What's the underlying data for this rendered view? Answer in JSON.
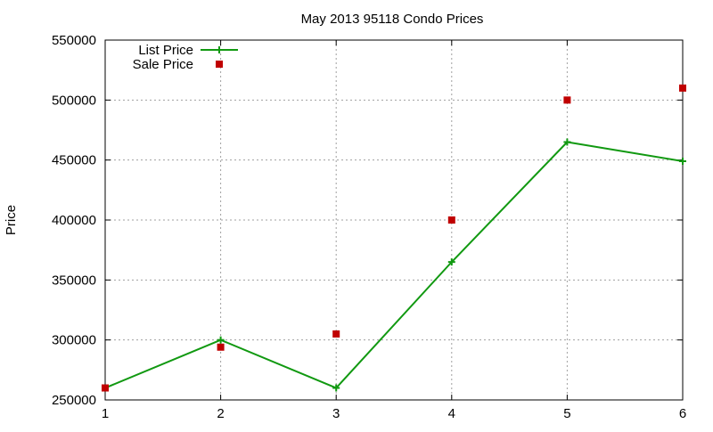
{
  "chart_data": {
    "type": "line",
    "title": "May 2013 95118 Condo Prices",
    "xlabel": "",
    "ylabel": "Price",
    "x": [
      1,
      2,
      3,
      4,
      5,
      6
    ],
    "xlim": [
      1,
      6
    ],
    "ylim": [
      250000,
      550000
    ],
    "x_ticks": [
      1,
      2,
      3,
      4,
      5,
      6
    ],
    "y_ticks": [
      250000,
      300000,
      350000,
      400000,
      450000,
      500000,
      550000
    ],
    "x_tick_labels": [
      "1",
      "2",
      "3",
      "4",
      "5",
      "6"
    ],
    "y_tick_labels": [
      "250000",
      "300000",
      "350000",
      "400000",
      "450000",
      "500000",
      "550000"
    ],
    "grid": true,
    "legend_position": "top-left",
    "series": [
      {
        "name": "List Price",
        "style": "line-points",
        "marker": "plus",
        "color": "#119911",
        "values": [
          260000,
          300000,
          260000,
          365000,
          465000,
          449000
        ]
      },
      {
        "name": "Sale Price",
        "style": "points",
        "marker": "square",
        "color": "#c00000",
        "values": [
          260000,
          294000,
          305000,
          400000,
          500000,
          510000
        ]
      }
    ]
  }
}
